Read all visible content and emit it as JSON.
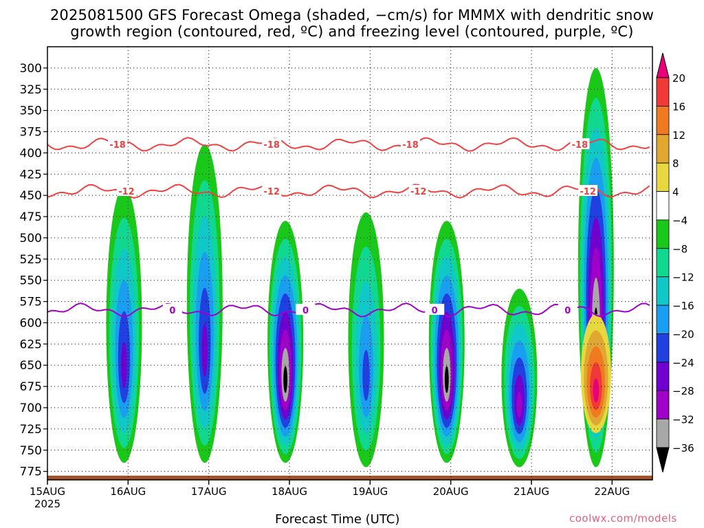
{
  "title_line1": "2025081500 GFS Forecast Omega (shaded, −cm/s) for MMMX with dendritic snow",
  "title_line2": "growth region (contoured, red, ºC) and freezing level (contoured, purple, ºC)",
  "x_axis_title": "Forecast Time (UTC)",
  "credit": "coolwx.com/models",
  "chart_data": {
    "type": "heatmap",
    "x_tick_labels": [
      "15AUG",
      "16AUG",
      "17AUG",
      "18AUG",
      "19AUG",
      "20AUG",
      "21AUG",
      "22AUG"
    ],
    "x_tick_year": "2025",
    "x_range_days": [
      0,
      7.5
    ],
    "y_tick_labels": [
      "300",
      "325",
      "350",
      "375",
      "400",
      "425",
      "450",
      "475",
      "500",
      "525",
      "550",
      "575",
      "600",
      "625",
      "650",
      "675",
      "700",
      "725",
      "750",
      "775"
    ],
    "y_range_hpa": [
      275,
      785
    ],
    "grid": "dotted",
    "colorbar": {
      "labels": [
        "20",
        "16",
        "12",
        "8",
        "4",
        "−4",
        "−8",
        "−12",
        "−16",
        "−20",
        "−24",
        "−28",
        "−32",
        "−36"
      ],
      "colors": [
        "#e8007a",
        "#f03a3a",
        "#f07a20",
        "#e0a830",
        "#e8d840",
        "#ffffff",
        "#19c819",
        "#10d890",
        "#10c8c8",
        "#1a9ef0",
        "#2040e0",
        "#7000d0",
        "#a000c8",
        "#a8a8a8",
        "#000000"
      ]
    },
    "contours": [
      {
        "label": "-18",
        "color": "#f04040",
        "level_hpa_approx": 390
      },
      {
        "label": "-12",
        "color": "#f04040",
        "level_hpa_approx": 445
      },
      {
        "label": "0",
        "color": "#a000c8",
        "level_hpa_approx": 585
      }
    ],
    "contour_label_positions_days": {
      "-18": [
        0.87,
        2.78,
        4.5,
        6.6
      ],
      "-12": [
        0.98,
        2.78,
        4.6,
        6.7
      ],
      "0": [
        1.55,
        3.2,
        4.8,
        6.45
      ]
    },
    "omega_features": [
      {
        "t": 0.95,
        "p_top": 440,
        "p_bot": 765,
        "peak": -24
      },
      {
        "t": 1.95,
        "p_top": 390,
        "p_bot": 765,
        "peak": -24
      },
      {
        "t": 2.95,
        "p_top": 480,
        "p_bot": 765,
        "peak": -36
      },
      {
        "t": 3.95,
        "p_top": 470,
        "p_bot": 770,
        "peak": -20
      },
      {
        "t": 4.95,
        "p_top": 480,
        "p_bot": 765,
        "peak": -36
      },
      {
        "t": 5.85,
        "p_top": 560,
        "p_bot": 770,
        "peak": -28
      },
      {
        "t": 6.8,
        "p_top": 300,
        "p_bot": 770,
        "peak": -36
      },
      {
        "t": 6.8,
        "p_top": 590,
        "p_bot": 730,
        "peak": 20
      }
    ]
  }
}
